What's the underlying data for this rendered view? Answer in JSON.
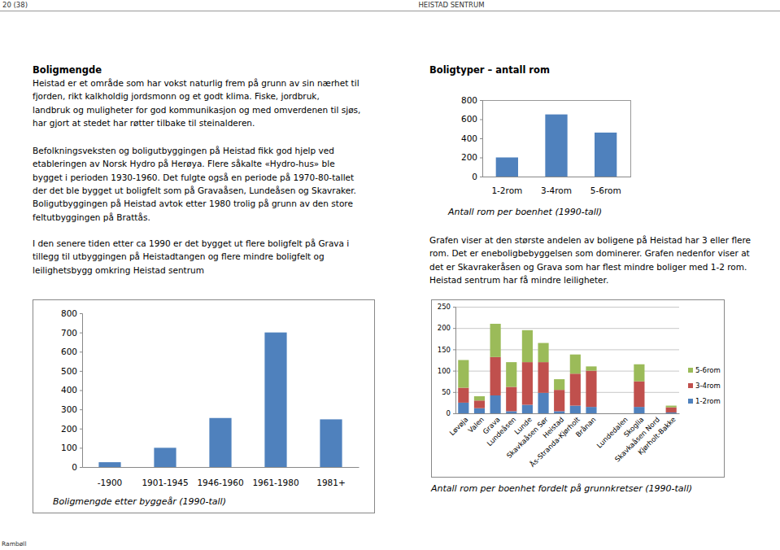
{
  "header": {
    "page": "20 (38)",
    "title": "HEISTAD SENTRUM"
  },
  "footer": "Rambøll",
  "left": {
    "heading": "Boligmengde",
    "paragraphs": [
      [
        "Heistad er et område som har vokst naturlig frem på grunn av sin nærhet til",
        "fjorden, rikt kalkholdig jordsmonn og et godt klima. Fiske, jordbruk,",
        "landbruk og muligheter for god kommunikasjon og med omverdenen til sjøs,",
        "har gjort at stedet har røtter tilbake til steinalderen."
      ],
      [
        "Befolkningsveksten og boligutbyggingen på Heistad fikk god hjelp ved",
        "etableringen av Norsk Hydro på Herøya. Flere såkalte «Hydro-hus» ble",
        "bygget i perioden 1930-1960. Det fulgte også en periode på 1970-80-tallet",
        "der det ble bygget ut boligfelt som på Gravaåsen, Lundeåsen og Skavraker.",
        "Boligutbyggingen på Heistad avtok etter 1980 trolig på grunn av den store",
        "feltutbyggingen på Brattås."
      ],
      [
        "I den senere tiden etter ca 1990 er det bygget ut flere boligfelt på Grava i",
        "tillegg til utbyggingen på Heistadtangen og flere mindre boligfelt og",
        "leilighetsbygg omkring Heistad sentrum"
      ]
    ]
  },
  "right": {
    "heading": "Boligtyper – antall rom",
    "paragraphs": [
      [
        "Grafen viser at den største andelen av boligene på Heistad har 3 eller flere",
        "rom. Det er eneboligbebyggelsen som dominerer. Grafen nedenfor viser at",
        "det er Skavrakeråsen og Grava som har flest mindre boliger med 1-2 rom.",
        "Heistad sentrum har få mindre leiligheter."
      ]
    ]
  },
  "chart_data": [
    {
      "type": "bar",
      "title": "Antall rom per boenhet (1990-tall)",
      "categories": [
        "1-2rom",
        "3-4rom",
        "5-6rom"
      ],
      "values": [
        200,
        650,
        460
      ],
      "color": "#4f81bd",
      "ylim": [
        0,
        800
      ],
      "yticks": [
        0,
        200,
        400,
        600,
        800
      ],
      "grid": false
    },
    {
      "type": "bar",
      "title": "Boligmengde etter byggeår (1990-tall)",
      "categories": [
        "-1900",
        "1901-1945",
        "1946-1960",
        "1961-1980",
        "1981+"
      ],
      "values": [
        25,
        100,
        255,
        700,
        248
      ],
      "color": "#4f81bd",
      "ylim": [
        0,
        800
      ],
      "yticks": [
        0,
        100,
        200,
        300,
        400,
        500,
        600,
        700,
        800
      ],
      "grid": false
    },
    {
      "type": "bar",
      "stacked": true,
      "title": "Antall rom per boenhet fordelt på grunnkretser (1990-tall)",
      "categories": [
        "Løvøja",
        "Valen",
        "Grava",
        "Lundeåsen",
        "Lunde",
        "Skavkaåsen Sør",
        "Heistad",
        "Ås-Stranda-Kjørholt",
        "Brånan",
        null,
        "Lundedalen",
        "Skoglia",
        "Skavkaåsen Nord",
        "Kjørholt-Bakke"
      ],
      "series": [
        {
          "name": "1-2rom",
          "color": "#4f81bd",
          "values": [
            25,
            12,
            42,
            5,
            20,
            48,
            5,
            18,
            15,
            0,
            0,
            15,
            0,
            2
          ]
        },
        {
          "name": "3-4rom",
          "color": "#c0504d",
          "values": [
            35,
            18,
            90,
            57,
            100,
            72,
            50,
            75,
            85,
            0,
            0,
            60,
            0,
            12
          ]
        },
        {
          "name": "5-6rom",
          "color": "#9bbb59",
          "values": [
            65,
            10,
            78,
            58,
            75,
            45,
            25,
            45,
            10,
            0,
            0,
            40,
            0,
            4
          ]
        }
      ],
      "ylim": [
        0,
        250
      ],
      "yticks": [
        0,
        50,
        100,
        150,
        200,
        250
      ],
      "grid": true,
      "legend": "right"
    }
  ]
}
